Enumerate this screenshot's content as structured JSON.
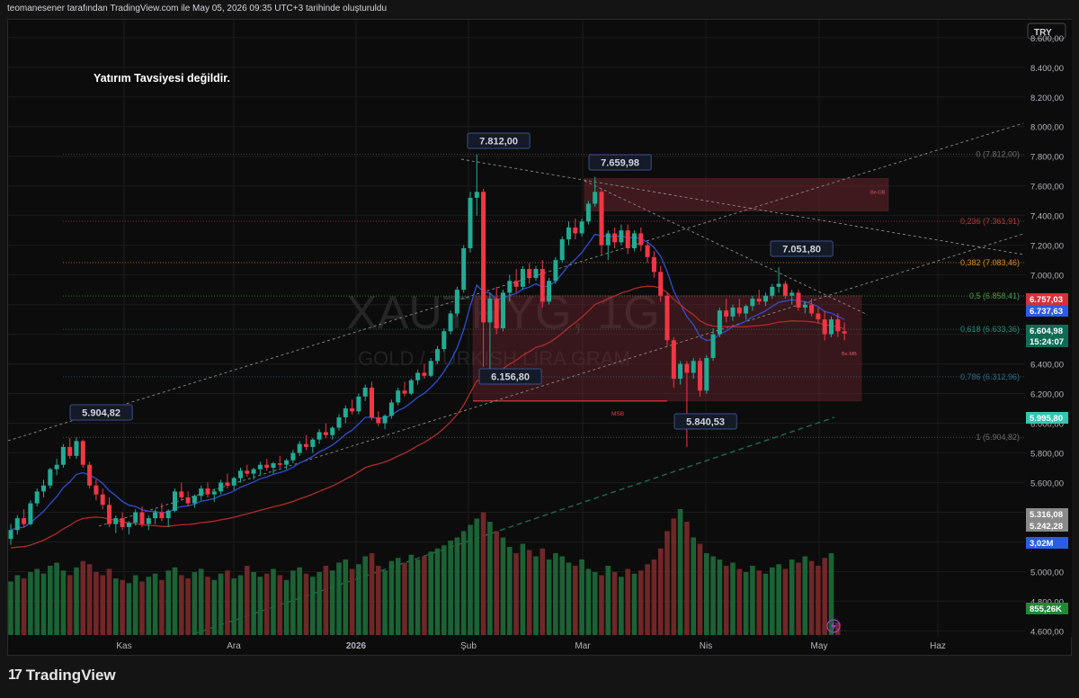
{
  "header": {
    "credit": "teomanesener tarafından TradingView.com ile May 05, 2026 09:35 UTC+3 tarihinde oluşturuldu"
  },
  "footer": {
    "brand": "TradingView"
  },
  "colors": {
    "up": "#22ab94",
    "down": "#f23645",
    "vol_up": "#1e6b3a",
    "vol_down": "#7a2a2a",
    "ema_short": "#2f4fcf",
    "ema_long": "#b22b2b",
    "ema_200": "#1f6b4a",
    "zone": "#7d2a34",
    "fib": "#6b6b6b"
  },
  "chart_data": {
    "type": "candlestick",
    "currency": "TRY",
    "annotation": "Yatırım Tavsiyesi değildir.",
    "watermark": {
      "symbol": "XAUTRYG, 1G",
      "description": "GOLD / TURKISH LIRA GRAM"
    },
    "x_axis": {
      "tick_labels": [
        "Kas",
        "Ara",
        "2026",
        "Şub",
        "Mar",
        "Nis",
        "May",
        "Haz"
      ]
    },
    "y_axis": {
      "tick_labels": [
        "8.600,00",
        "8.400,00",
        "8.200,00",
        "8.000,00",
        "7.800,00",
        "7.600,00",
        "7.400,00",
        "7.200,00",
        "7.000,00",
        "6.800,00",
        "6.600,00",
        "6.400,00",
        "6.200,00",
        "6.000,00",
        "5.800,00",
        "5.600,00",
        "5.400,00",
        "5.200,00",
        "5.000,00",
        "4.800,00",
        "4.600,00"
      ],
      "ylim": [
        4560,
        8720
      ]
    },
    "price_labels": [
      {
        "text": "6.757,03",
        "color": "#d63038"
      },
      {
        "text": "6.737,63",
        "color": "#2b5ce6"
      },
      {
        "text": "6.604,98",
        "color": "#106b55"
      },
      {
        "text": "15:24:07",
        "color": "#106b55"
      },
      {
        "text": "5.995,80",
        "color": "#31c7b3"
      },
      {
        "text": "5.316,08",
        "color": "#8a8a8a"
      },
      {
        "text": "5.242,28",
        "color": "#8a8a8a"
      },
      {
        "text": "3,02M",
        "color": "#2b5ce6"
      },
      {
        "text": "855,26K",
        "color": "#1f8a36"
      }
    ],
    "fib_levels": [
      {
        "label": "0 (7.812,00)",
        "value": 7812,
        "color": "#6b6b6b"
      },
      {
        "label": "0,236 (7.361,91)",
        "value": 7362,
        "color": "#b23a3a"
      },
      {
        "label": "0,382 (7.083,46)",
        "value": 7083,
        "color": "#e08a1e"
      },
      {
        "label": "0,5 (6.858,41)",
        "value": 6858,
        "color": "#4a9a4a"
      },
      {
        "label": "0,618 (6.633,36)",
        "value": 6633,
        "color": "#2a8a7a"
      },
      {
        "label": "0,786 (6.312,96)",
        "value": 6313,
        "color": "#2a6f8f"
      },
      {
        "label": "1 (5.904,82)",
        "value": 5905,
        "color": "#6b6b6b"
      }
    ],
    "callouts": [
      "7.812,00",
      "7.659,98",
      "7.051,80",
      "6.156,80",
      "5.904,82",
      "5.840,53"
    ],
    "zone_labels": [
      "Be-OB",
      "Be-MB"
    ],
    "msb_label": "MSB",
    "candles": [
      [
        5220,
        5320,
        5180,
        5280
      ],
      [
        5280,
        5380,
        5250,
        5360
      ],
      [
        5360,
        5420,
        5300,
        5320
      ],
      [
        5320,
        5480,
        5310,
        5460
      ],
      [
        5460,
        5560,
        5440,
        5540
      ],
      [
        5540,
        5620,
        5500,
        5580
      ],
      [
        5580,
        5700,
        5560,
        5690
      ],
      [
        5690,
        5760,
        5650,
        5720
      ],
      [
        5720,
        5860,
        5700,
        5840
      ],
      [
        5840,
        5900,
        5760,
        5780
      ],
      [
        5780,
        5905,
        5760,
        5880
      ],
      [
        5880,
        5890,
        5700,
        5720
      ],
      [
        5720,
        5740,
        5560,
        5580
      ],
      [
        5580,
        5620,
        5480,
        5520
      ],
      [
        5520,
        5560,
        5420,
        5450
      ],
      [
        5450,
        5500,
        5300,
        5320
      ],
      [
        5320,
        5380,
        5260,
        5360
      ],
      [
        5360,
        5400,
        5280,
        5300
      ],
      [
        5300,
        5340,
        5250,
        5330
      ],
      [
        5330,
        5420,
        5310,
        5400
      ],
      [
        5400,
        5440,
        5300,
        5320
      ],
      [
        5320,
        5380,
        5280,
        5360
      ],
      [
        5360,
        5420,
        5320,
        5400
      ],
      [
        5400,
        5460,
        5340,
        5360
      ],
      [
        5360,
        5420,
        5300,
        5410
      ],
      [
        5410,
        5560,
        5400,
        5540
      ],
      [
        5540,
        5600,
        5480,
        5500
      ],
      [
        5500,
        5540,
        5440,
        5460
      ],
      [
        5460,
        5520,
        5430,
        5510
      ],
      [
        5510,
        5580,
        5480,
        5560
      ],
      [
        5560,
        5600,
        5500,
        5520
      ],
      [
        5520,
        5560,
        5470,
        5540
      ],
      [
        5540,
        5620,
        5520,
        5600
      ],
      [
        5600,
        5660,
        5560,
        5580
      ],
      [
        5580,
        5640,
        5550,
        5630
      ],
      [
        5630,
        5700,
        5600,
        5680
      ],
      [
        5680,
        5720,
        5640,
        5660
      ],
      [
        5660,
        5700,
        5620,
        5690
      ],
      [
        5690,
        5740,
        5650,
        5720
      ],
      [
        5720,
        5760,
        5680,
        5700
      ],
      [
        5700,
        5740,
        5660,
        5730
      ],
      [
        5730,
        5780,
        5700,
        5720
      ],
      [
        5720,
        5760,
        5690,
        5750
      ],
      [
        5750,
        5820,
        5730,
        5800
      ],
      [
        5800,
        5880,
        5780,
        5860
      ],
      [
        5860,
        5920,
        5820,
        5840
      ],
      [
        5840,
        5900,
        5800,
        5890
      ],
      [
        5890,
        5960,
        5860,
        5940
      ],
      [
        5940,
        6000,
        5900,
        5920
      ],
      [
        5920,
        5980,
        5890,
        5970
      ],
      [
        5970,
        6060,
        5950,
        6040
      ],
      [
        6040,
        6120,
        6000,
        6100
      ],
      [
        6100,
        6160,
        6060,
        6080
      ],
      [
        6080,
        6200,
        6060,
        6180
      ],
      [
        6180,
        6260,
        6150,
        6240
      ],
      [
        6240,
        6280,
        6020,
        6040
      ],
      [
        6040,
        6080,
        5980,
        6000
      ],
      [
        6000,
        6060,
        5960,
        6050
      ],
      [
        6050,
        6160,
        6030,
        6140
      ],
      [
        6140,
        6240,
        6120,
        6220
      ],
      [
        6220,
        6280,
        6180,
        6200
      ],
      [
        6200,
        6300,
        6190,
        6290
      ],
      [
        6290,
        6360,
        6260,
        6340
      ],
      [
        6340,
        6400,
        6300,
        6320
      ],
      [
        6320,
        6440,
        6310,
        6420
      ],
      [
        6420,
        6520,
        6400,
        6500
      ],
      [
        6500,
        6640,
        6480,
        6620
      ],
      [
        6620,
        6760,
        6600,
        6740
      ],
      [
        6740,
        6920,
        6720,
        6900
      ],
      [
        6900,
        7200,
        6880,
        7180
      ],
      [
        7180,
        7560,
        7150,
        7520
      ],
      [
        7520,
        7812,
        7400,
        7560
      ],
      [
        7560,
        7580,
        6380,
        6680
      ],
      [
        6680,
        6880,
        6300,
        6840
      ],
      [
        6840,
        6920,
        6600,
        6640
      ],
      [
        6640,
        6900,
        6620,
        6880
      ],
      [
        6880,
        7000,
        6820,
        6960
      ],
      [
        6960,
        7040,
        6880,
        6920
      ],
      [
        6920,
        7060,
        6900,
        7040
      ],
      [
        7040,
        7080,
        6940,
        6980
      ],
      [
        6980,
        7060,
        6960,
        7040
      ],
      [
        7040,
        7100,
        6780,
        6820
      ],
      [
        6820,
        6980,
        6800,
        6960
      ],
      [
        6960,
        7120,
        6940,
        7100
      ],
      [
        7100,
        7260,
        7080,
        7240
      ],
      [
        7240,
        7360,
        7200,
        7320
      ],
      [
        7320,
        7380,
        7240,
        7280
      ],
      [
        7280,
        7380,
        7260,
        7360
      ],
      [
        7360,
        7500,
        7340,
        7480
      ],
      [
        7480,
        7660,
        7460,
        7560
      ],
      [
        7560,
        7580,
        7140,
        7200
      ],
      [
        7200,
        7300,
        7100,
        7280
      ],
      [
        7280,
        7320,
        7180,
        7220
      ],
      [
        7220,
        7340,
        7200,
        7300
      ],
      [
        7300,
        7340,
        7140,
        7180
      ],
      [
        7180,
        7300,
        7160,
        7280
      ],
      [
        7280,
        7320,
        7160,
        7200
      ],
      [
        7200,
        7220,
        7080,
        7120
      ],
      [
        7120,
        7160,
        6980,
        7020
      ],
      [
        7020,
        7060,
        6820,
        6860
      ],
      [
        6860,
        6880,
        6520,
        6560
      ],
      [
        6560,
        6580,
        6240,
        6300
      ],
      [
        6300,
        6420,
        6260,
        6400
      ],
      [
        6400,
        6420,
        5840,
        6340
      ],
      [
        6340,
        6440,
        6300,
        6420
      ],
      [
        6420,
        6440,
        6180,
        6220
      ],
      [
        6220,
        6460,
        6200,
        6440
      ],
      [
        6440,
        6640,
        6420,
        6600
      ],
      [
        6600,
        6780,
        6580,
        6760
      ],
      [
        6760,
        6840,
        6680,
        6720
      ],
      [
        6720,
        6800,
        6690,
        6780
      ],
      [
        6780,
        6840,
        6720,
        6740
      ],
      [
        6740,
        6800,
        6700,
        6790
      ],
      [
        6790,
        6860,
        6760,
        6840
      ],
      [
        6840,
        6900,
        6800,
        6820
      ],
      [
        6820,
        6880,
        6790,
        6860
      ],
      [
        6860,
        6940,
        6840,
        6920
      ],
      [
        6920,
        7052,
        6880,
        6940
      ],
      [
        6940,
        6960,
        6840,
        6860
      ],
      [
        6860,
        6900,
        6800,
        6880
      ],
      [
        6880,
        6900,
        6760,
        6780
      ],
      [
        6780,
        6820,
        6740,
        6800
      ],
      [
        6800,
        6840,
        6720,
        6740
      ],
      [
        6740,
        6780,
        6680,
        6700
      ],
      [
        6700,
        6760,
        6560,
        6600
      ],
      [
        6600,
        6720,
        6580,
        6700
      ],
      [
        6700,
        6740,
        6580,
        6620
      ],
      [
        6620,
        6680,
        6560,
        6605
      ]
    ],
    "volumes": [
      0.34,
      0.38,
      0.36,
      0.4,
      0.42,
      0.39,
      0.44,
      0.46,
      0.41,
      0.38,
      0.43,
      0.47,
      0.45,
      0.4,
      0.38,
      0.42,
      0.36,
      0.35,
      0.33,
      0.38,
      0.34,
      0.37,
      0.39,
      0.35,
      0.41,
      0.43,
      0.38,
      0.36,
      0.4,
      0.42,
      0.37,
      0.35,
      0.39,
      0.41,
      0.36,
      0.38,
      0.44,
      0.4,
      0.37,
      0.39,
      0.42,
      0.38,
      0.35,
      0.41,
      0.43,
      0.39,
      0.37,
      0.4,
      0.44,
      0.41,
      0.46,
      0.48,
      0.42,
      0.45,
      0.5,
      0.52,
      0.44,
      0.41,
      0.47,
      0.49,
      0.46,
      0.51,
      0.48,
      0.5,
      0.53,
      0.55,
      0.57,
      0.6,
      0.62,
      0.66,
      0.7,
      0.74,
      0.78,
      0.72,
      0.66,
      0.62,
      0.56,
      0.52,
      0.58,
      0.54,
      0.5,
      0.55,
      0.48,
      0.52,
      0.5,
      0.46,
      0.44,
      0.48,
      0.42,
      0.4,
      0.38,
      0.44,
      0.4,
      0.37,
      0.42,
      0.39,
      0.41,
      0.45,
      0.48,
      0.55,
      0.66,
      0.74,
      0.8,
      0.72,
      0.62,
      0.58,
      0.52,
      0.5,
      0.48,
      0.44,
      0.46,
      0.42,
      0.4,
      0.44,
      0.41,
      0.39,
      0.43,
      0.45,
      0.42,
      0.48,
      0.46,
      0.5,
      0.47,
      0.44,
      0.49,
      0.52,
      0.08
    ]
  }
}
